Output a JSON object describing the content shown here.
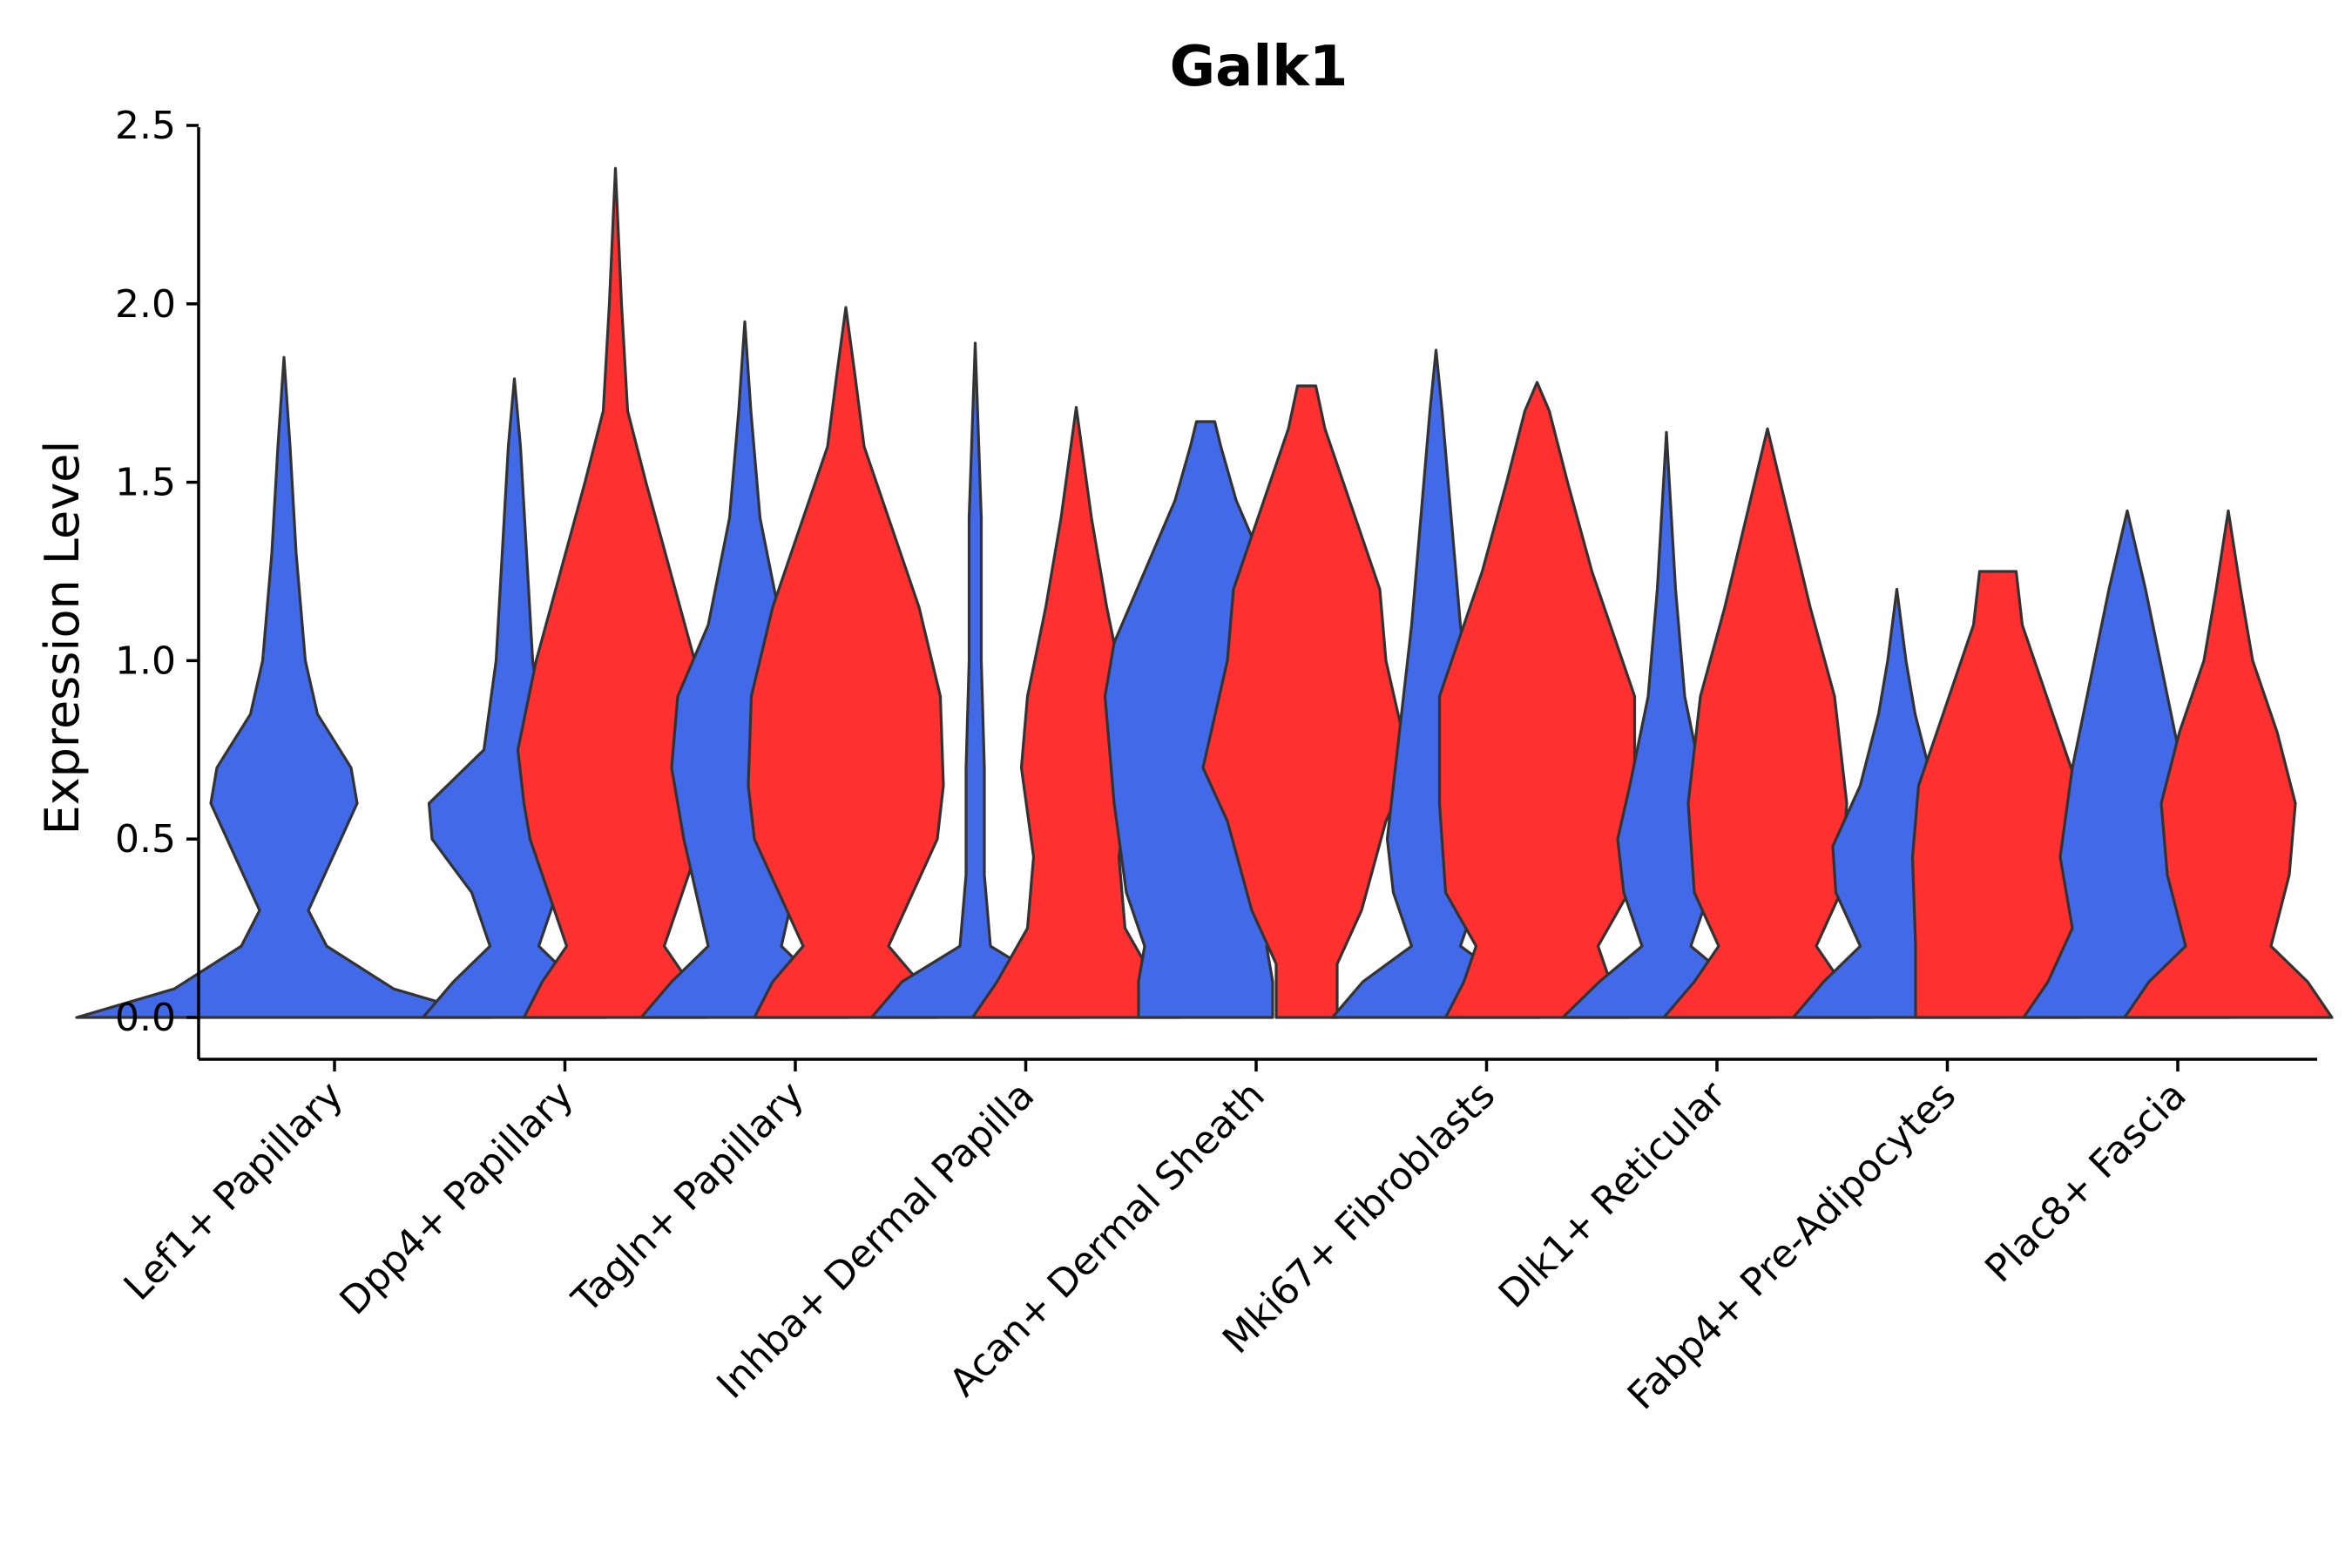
{
  "chart_data": {
    "type": "violin",
    "title": "Galk1",
    "xlabel": "",
    "ylabel": "Expression Level",
    "ylim": [
      -0.12,
      2.5
    ],
    "yticks": [
      "0.0",
      "0.5",
      "1.0",
      "1.5",
      "2.0",
      "2.5"
    ],
    "ytick_values": [
      0,
      0.5,
      1.0,
      1.5,
      2.0,
      2.5
    ],
    "categories": [
      "Lef1+ Papillary",
      "Dpp4+ Papillary",
      "Tagln+ Papillary",
      "Inhba+ Dermal Papilla",
      "Acan+ Dermal Sheath",
      "Mki67+ Fibroblasts",
      "Dlk1+ Reticular",
      "Fabp4+ Pre-Adipocytes",
      "Plac8+ Fascia"
    ],
    "series": [
      {
        "color": "#4169E8",
        "violins": [
          {
            "max": 1.85,
            "profile": [
              [
                0,
                68
              ],
              [
                0.08,
                36
              ],
              [
                0.2,
                14
              ],
              [
                0.3,
                8
              ],
              [
                0.45,
                16
              ],
              [
                0.6,
                24
              ],
              [
                0.7,
                22
              ],
              [
                0.85,
                11
              ],
              [
                1.0,
                7
              ],
              [
                1.3,
                4
              ],
              [
                1.6,
                2
              ],
              [
                1.85,
                0
              ]
            ]
          },
          {
            "max": 1.79,
            "profile": [
              [
                0,
                30
              ],
              [
                0.1,
                20
              ],
              [
                0.2,
                8
              ],
              [
                0.35,
                14
              ],
              [
                0.5,
                27
              ],
              [
                0.6,
                28
              ],
              [
                0.75,
                10
              ],
              [
                1.0,
                6
              ],
              [
                1.3,
                4
              ],
              [
                1.6,
                2
              ],
              [
                1.79,
                0
              ]
            ]
          },
          {
            "max": 1.95,
            "profile": [
              [
                0,
                34
              ],
              [
                0.1,
                24
              ],
              [
                0.2,
                12
              ],
              [
                0.35,
                16
              ],
              [
                0.5,
                20
              ],
              [
                0.7,
                24
              ],
              [
                0.9,
                22
              ],
              [
                1.1,
                12
              ],
              [
                1.4,
                5
              ],
              [
                1.7,
                2
              ],
              [
                1.95,
                0
              ]
            ]
          },
          {
            "max": 1.89,
            "profile": [
              [
                0,
                34
              ],
              [
                0.1,
                24
              ],
              [
                0.2,
                5
              ],
              [
                0.4,
                3
              ],
              [
                0.7,
                3
              ],
              [
                1.0,
                2
              ],
              [
                1.4,
                2
              ],
              [
                1.89,
                0
              ]
            ]
          },
          {
            "max": 1.67,
            "profile": [
              [
                0,
                22
              ],
              [
                0.1,
                22
              ],
              [
                0.2,
                20
              ],
              [
                0.35,
                26
              ],
              [
                0.6,
                30
              ],
              [
                0.9,
                33
              ],
              [
                1.05,
                30
              ],
              [
                1.25,
                20
              ],
              [
                1.45,
                10
              ],
              [
                1.6,
                5
              ],
              [
                1.67,
                3
              ]
            ]
          },
          {
            "max": 1.87,
            "profile": [
              [
                0,
                34
              ],
              [
                0.1,
                24
              ],
              [
                0.2,
                8
              ],
              [
                0.35,
                14
              ],
              [
                0.5,
                16
              ],
              [
                0.8,
                12
              ],
              [
                1.1,
                8
              ],
              [
                1.4,
                5
              ],
              [
                1.7,
                2
              ],
              [
                1.87,
                0
              ]
            ]
          },
          {
            "max": 1.64,
            "profile": [
              [
                0,
                34
              ],
              [
                0.1,
                22
              ],
              [
                0.2,
                8
              ],
              [
                0.35,
                14
              ],
              [
                0.5,
                16
              ],
              [
                0.65,
                12
              ],
              [
                0.9,
                6
              ],
              [
                1.2,
                3
              ],
              [
                1.64,
                0
              ]
            ]
          },
          {
            "max": 1.2,
            "profile": [
              [
                0,
                34
              ],
              [
                0.1,
                24
              ],
              [
                0.2,
                12
              ],
              [
                0.35,
                20
              ],
              [
                0.48,
                21
              ],
              [
                0.65,
                12
              ],
              [
                0.85,
                6
              ],
              [
                1.0,
                3
              ],
              [
                1.2,
                0
              ]
            ]
          },
          {
            "max": 1.42,
            "profile": [
              [
                0,
                34
              ],
              [
                0.1,
                26
              ],
              [
                0.25,
                18
              ],
              [
                0.45,
                22
              ],
              [
                0.7,
                18
              ],
              [
                0.95,
                12
              ],
              [
                1.2,
                6
              ],
              [
                1.42,
                0
              ]
            ]
          }
        ]
      },
      {
        "color": "#FF3030",
        "violins": [
          null,
          {
            "max": 2.38,
            "profile": [
              [
                0,
                30
              ],
              [
                0.1,
                24
              ],
              [
                0.2,
                16
              ],
              [
                0.35,
                22
              ],
              [
                0.5,
                28
              ],
              [
                0.6,
                30
              ],
              [
                0.75,
                32
              ],
              [
                1.0,
                26
              ],
              [
                1.25,
                18
              ],
              [
                1.5,
                10
              ],
              [
                1.7,
                4
              ],
              [
                2.0,
                2
              ],
              [
                2.38,
                0
              ]
            ]
          },
          {
            "max": 1.99,
            "profile": [
              [
                0,
                30
              ],
              [
                0.1,
                24
              ],
              [
                0.2,
                14
              ],
              [
                0.35,
                22
              ],
              [
                0.5,
                30
              ],
              [
                0.65,
                32
              ],
              [
                0.9,
                31
              ],
              [
                1.15,
                24
              ],
              [
                1.4,
                14
              ],
              [
                1.6,
                6
              ],
              [
                1.8,
                3
              ],
              [
                1.99,
                0
              ]
            ]
          },
          {
            "max": 1.71,
            "profile": [
              [
                0,
                34
              ],
              [
                0.1,
                26
              ],
              [
                0.25,
                16
              ],
              [
                0.45,
                14
              ],
              [
                0.7,
                18
              ],
              [
                0.9,
                16
              ],
              [
                1.15,
                10
              ],
              [
                1.4,
                5
              ],
              [
                1.71,
                0
              ]
            ]
          },
          {
            "max": 1.77,
            "profile": [
              [
                0,
                10
              ],
              [
                0.15,
                10
              ],
              [
                0.3,
                18
              ],
              [
                0.55,
                26
              ],
              [
                0.7,
                34
              ],
              [
                0.85,
                30
              ],
              [
                1.0,
                26
              ],
              [
                1.2,
                24
              ],
              [
                1.45,
                14
              ],
              [
                1.65,
                6
              ],
              [
                1.77,
                3
              ]
            ]
          },
          {
            "max": 1.78,
            "profile": [
              [
                0,
                30
              ],
              [
                0.1,
                24
              ],
              [
                0.2,
                20
              ],
              [
                0.35,
                30
              ],
              [
                0.6,
                32
              ],
              [
                0.9,
                32
              ],
              [
                1.05,
                26
              ],
              [
                1.25,
                18
              ],
              [
                1.5,
                10
              ],
              [
                1.7,
                4
              ],
              [
                1.78,
                0
              ]
            ]
          },
          {
            "max": 1.65,
            "profile": [
              [
                0,
                34
              ],
              [
                0.1,
                24
              ],
              [
                0.2,
                16
              ],
              [
                0.35,
                24
              ],
              [
                0.6,
                26
              ],
              [
                0.9,
                22
              ],
              [
                1.15,
                14
              ],
              [
                1.4,
                7
              ],
              [
                1.65,
                0
              ]
            ]
          },
          {
            "max": 1.25,
            "profile": [
              [
                0,
                27
              ],
              [
                0.2,
                27
              ],
              [
                0.45,
                28
              ],
              [
                0.65,
                26
              ],
              [
                0.9,
                16
              ],
              [
                1.1,
                8
              ],
              [
                1.25,
                6
              ]
            ]
          },
          {
            "max": 1.42,
            "profile": [
              [
                0,
                34
              ],
              [
                0.1,
                26
              ],
              [
                0.2,
                14
              ],
              [
                0.4,
                20
              ],
              [
                0.6,
                22
              ],
              [
                0.8,
                16
              ],
              [
                1.0,
                8
              ],
              [
                1.2,
                4
              ],
              [
                1.42,
                0
              ]
            ]
          }
        ]
      }
    ],
    "grid": false,
    "legend": false
  }
}
